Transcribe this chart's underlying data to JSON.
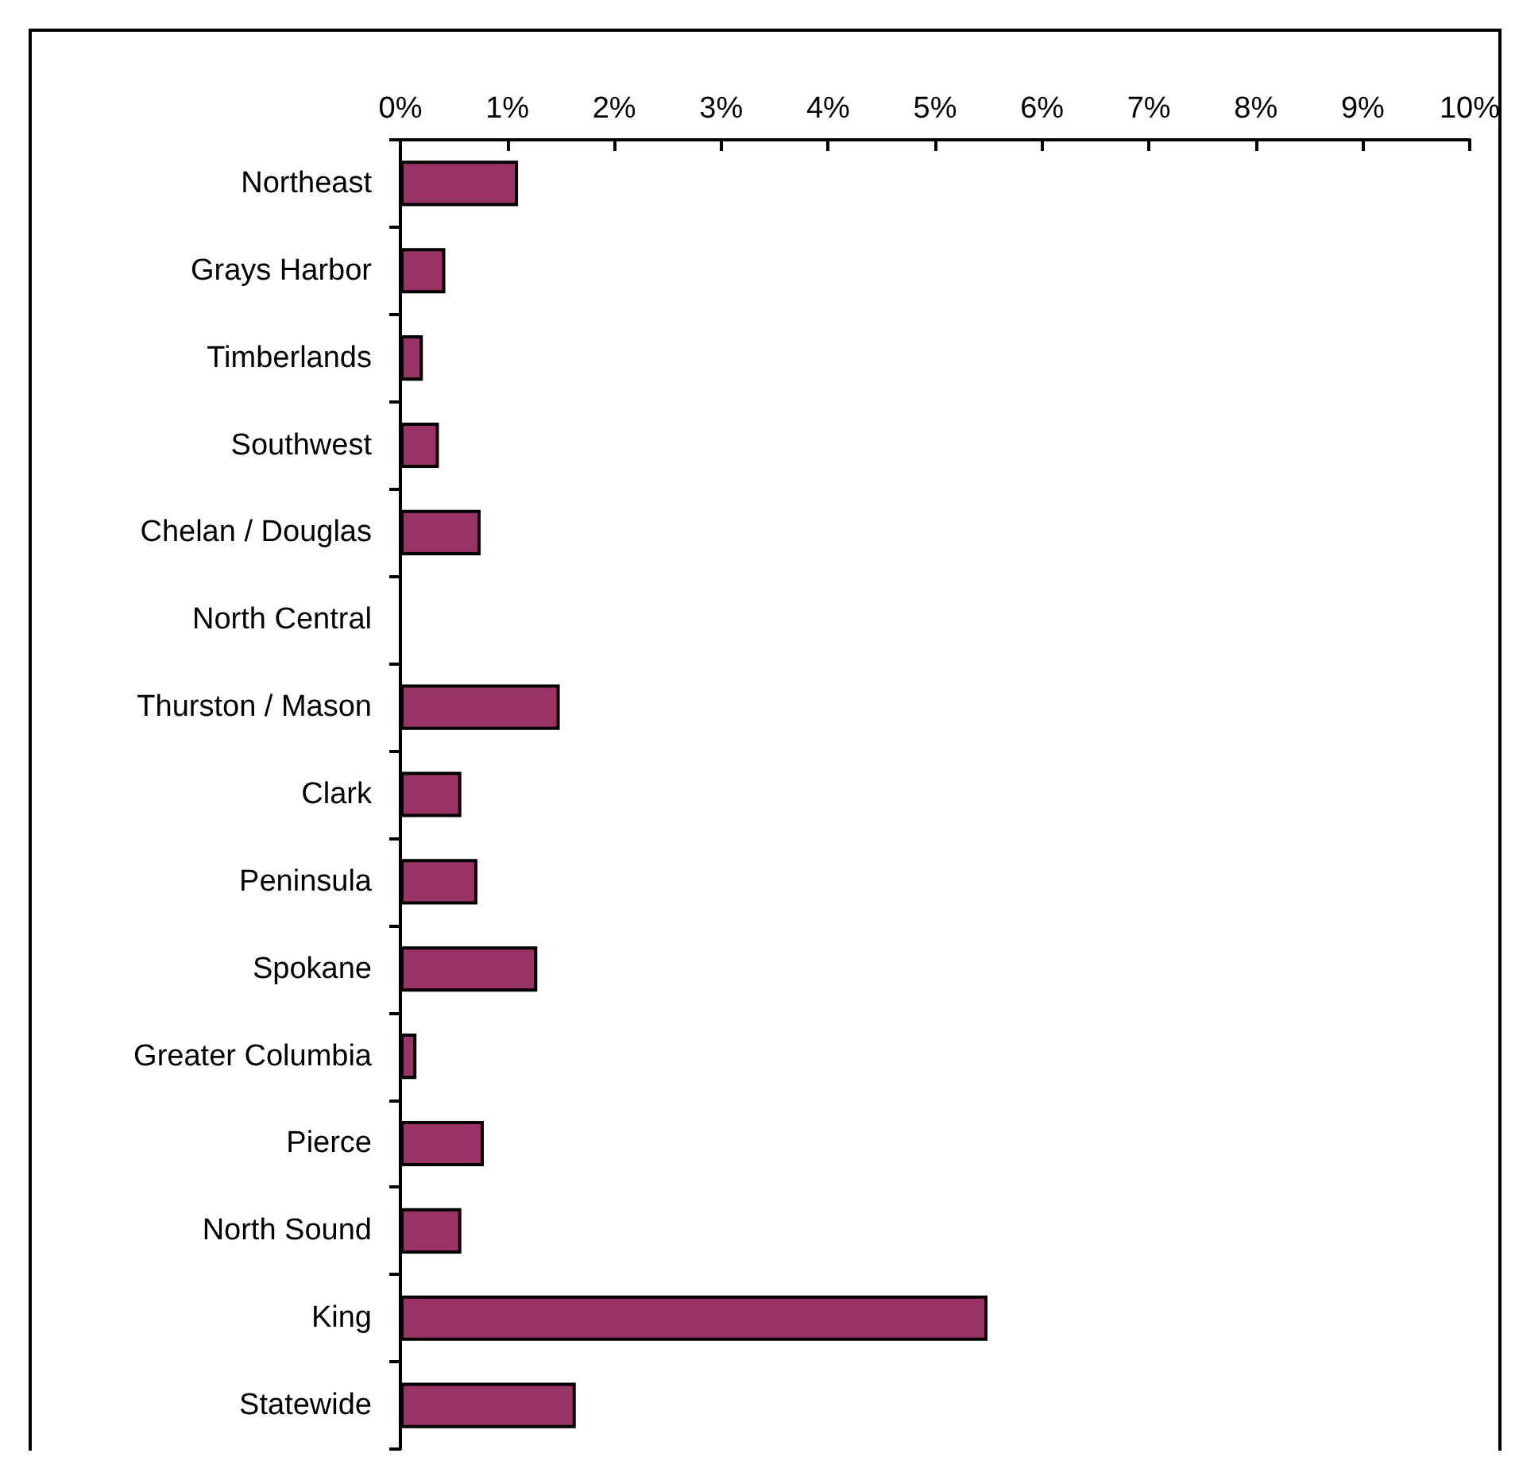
{
  "chart_data": {
    "type": "bar",
    "orientation": "horizontal",
    "categories": [
      "Northeast",
      "Grays Harbor",
      "Timberlands",
      "Southwest",
      "Chelan / Douglas",
      "North Central",
      "Thurston / Mason",
      "Clark",
      "Peninsula",
      "Spokane",
      "Greater Columbia",
      "Pierce",
      "North Sound",
      "King",
      "Statewide"
    ],
    "values": [
      1.1,
      0.42,
      0.21,
      0.36,
      0.75,
      0,
      1.49,
      0.57,
      0.72,
      1.28,
      0.15,
      0.78,
      0.57,
      5.49,
      1.64
    ],
    "color": "#993366",
    "xlim": [
      0,
      10
    ],
    "xticks": [
      {
        "value": 0,
        "label": "0%"
      },
      {
        "value": 1,
        "label": "1%"
      },
      {
        "value": 2,
        "label": "2%"
      },
      {
        "value": 3,
        "label": "3%"
      },
      {
        "value": 4,
        "label": "4%"
      },
      {
        "value": 5,
        "label": "5%"
      },
      {
        "value": 6,
        "label": "6%"
      },
      {
        "value": 7,
        "label": "7%"
      },
      {
        "value": 8,
        "label": "8%"
      },
      {
        "value": 9,
        "label": "9%"
      },
      {
        "value": 10,
        "label": "10%"
      }
    ],
    "grid": false
  }
}
